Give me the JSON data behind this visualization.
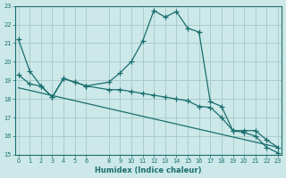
{
  "xlabel": "Humidex (Indice chaleur)",
  "bg_color": "#cce8e8",
  "grid_color": "#aacccc",
  "line_color": "#1a6e6e",
  "x_ticks": [
    0,
    1,
    2,
    3,
    4,
    5,
    6,
    8,
    9,
    10,
    11,
    12,
    13,
    14,
    15,
    16,
    17,
    18,
    19,
    20,
    21,
    22,
    23
  ],
  "ylim": [
    15,
    23
  ],
  "xlim": [
    -0.3,
    23.3
  ],
  "y_ticks": [
    15,
    16,
    17,
    18,
    19,
    20,
    21,
    22,
    23
  ],
  "series1_x": [
    0,
    1,
    2,
    3,
    4,
    5,
    6,
    8,
    9,
    10,
    11,
    12,
    13,
    14,
    15,
    16,
    17,
    18,
    19,
    20,
    21,
    22,
    23
  ],
  "series1_y": [
    21.2,
    19.5,
    18.7,
    18.1,
    19.1,
    18.9,
    18.7,
    18.9,
    19.4,
    20.0,
    21.1,
    22.75,
    22.4,
    22.7,
    21.8,
    21.6,
    17.85,
    17.6,
    16.3,
    16.2,
    16.0,
    15.4,
    15.1
  ],
  "series2_x": [
    0,
    1,
    2,
    3,
    4,
    5,
    6,
    8,
    9,
    10,
    11,
    12,
    13,
    14,
    15,
    16,
    17,
    18,
    19,
    20,
    21,
    22,
    23
  ],
  "series2_y": [
    19.3,
    18.8,
    18.7,
    18.1,
    19.1,
    18.9,
    18.7,
    18.5,
    18.5,
    18.4,
    18.3,
    18.2,
    18.1,
    18.0,
    17.9,
    17.6,
    17.55,
    17.0,
    16.3,
    16.3,
    16.3,
    15.8,
    15.4
  ],
  "series3_x": [
    0,
    23
  ],
  "series3_y": [
    18.6,
    15.4
  ]
}
